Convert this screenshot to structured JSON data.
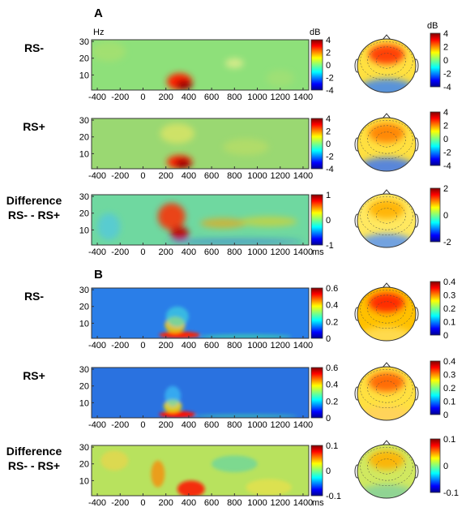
{
  "panels": [
    {
      "letter": "A",
      "rows": [
        {
          "label": [
            "RS-"
          ],
          "cbar": {
            "max": "4",
            "ticks": [
              "4",
              "2",
              "0",
              "-2",
              "-4"
            ]
          },
          "topo": {
            "ticks": [
              "4",
              "2",
              "0",
              "-2",
              "-4"
            ]
          }
        },
        {
          "label": [
            "RS+"
          ],
          "cbar": {
            "ticks": [
              "4",
              "2",
              "0",
              "-2",
              "-4"
            ]
          },
          "topo": {
            "ticks": [
              "4",
              "2",
              "0",
              "-2",
              "-4"
            ]
          }
        },
        {
          "label": [
            "Difference",
            "RS- - RS+"
          ],
          "cbar": {
            "ticks": [
              "1",
              "0",
              "-1"
            ]
          },
          "topo": {
            "ticks": [
              "2",
              "0",
              "-2"
            ]
          }
        }
      ]
    },
    {
      "letter": "B",
      "rows": [
        {
          "label": [
            "RS-"
          ],
          "cbar": {
            "ticks": [
              "0.6",
              "0.4",
              "0.2",
              "0"
            ]
          },
          "topo": {
            "ticks": [
              "0.4",
              "0.3",
              "0.2",
              "0.1",
              "0"
            ]
          }
        },
        {
          "label": [
            "RS+"
          ],
          "cbar": {
            "ticks": [
              "0.6",
              "0.4",
              "0.2",
              "0"
            ]
          },
          "topo": {
            "ticks": [
              "0.4",
              "0.3",
              "0.2",
              "0.1",
              "0"
            ]
          }
        },
        {
          "label": [
            "Difference",
            "RS- - RS+"
          ],
          "cbar": {
            "ticks": [
              "0.1",
              "0",
              "-0.1"
            ]
          },
          "topo": {
            "ticks": [
              "0.1",
              "0",
              "-0.1"
            ]
          }
        }
      ]
    }
  ],
  "chart_data": {
    "type": "heatmap",
    "x_ticks": [
      "-400",
      "-200",
      "0",
      "200",
      "400",
      "600",
      "800",
      "1000",
      "1200",
      "1400"
    ],
    "y_ticks": [
      "30",
      "20",
      "10"
    ],
    "xlim": [
      -450,
      1450
    ],
    "ylim": [
      1,
      31
    ],
    "y_unit": "Hz",
    "x_unit": "ms",
    "cbar_unit": "dB",
    "colormap": "jet"
  }
}
